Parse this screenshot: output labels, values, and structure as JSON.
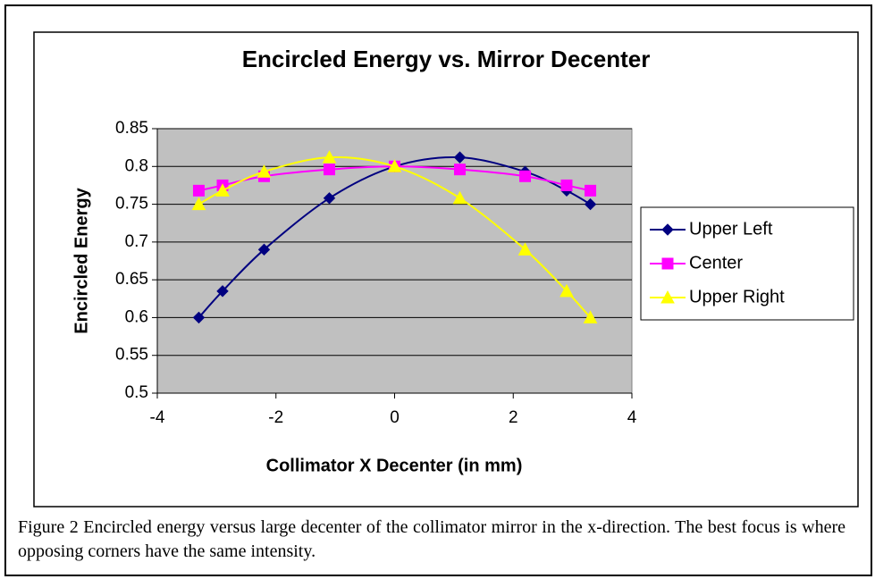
{
  "chart_data": {
    "type": "line",
    "smooth": true,
    "title": "Encircled Energy vs. Mirror Decenter",
    "x_label": "Collimator X Decenter (in mm)",
    "y_label": "Encircled Energy",
    "x": [
      -3.3,
      -2.9,
      -2.2,
      -1.1,
      0,
      1.1,
      2.2,
      2.9,
      3.3
    ],
    "series": [
      {
        "name": "Upper Left",
        "color": "#000080",
        "marker": "diamond",
        "values": [
          0.6,
          0.635,
          0.69,
          0.758,
          0.8,
          0.812,
          0.793,
          0.768,
          0.75
        ]
      },
      {
        "name": "Center",
        "color": "#ff00ff",
        "marker": "square",
        "values": [
          0.768,
          0.775,
          0.787,
          0.796,
          0.8,
          0.796,
          0.787,
          0.775,
          0.768
        ]
      },
      {
        "name": "Upper Right",
        "color": "#ffff00",
        "marker": "triangle",
        "values": [
          0.75,
          0.768,
          0.793,
          0.812,
          0.8,
          0.758,
          0.69,
          0.635,
          0.6
        ]
      }
    ],
    "xlim": [
      -4,
      4
    ],
    "xticks": [
      -4,
      -2,
      0,
      2,
      4
    ],
    "ylim": [
      0.5,
      0.85
    ],
    "yticks": [
      0.5,
      0.55,
      0.6,
      0.65,
      0.7,
      0.75,
      0.8,
      0.85
    ],
    "grid": true,
    "plot_background": "#c0c0c0",
    "legend": "right"
  },
  "caption": "Figure 2 Encircled energy versus large decenter of the collimator mirror in the x-direction.  The best focus is where opposing corners have the same intensity."
}
